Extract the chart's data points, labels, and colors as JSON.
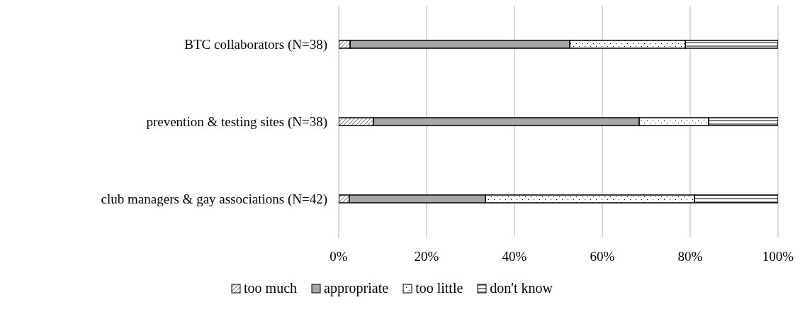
{
  "chart_data": {
    "type": "bar",
    "orientation": "horizontal",
    "stacked": true,
    "categories": [
      "BTC collaborators (N=38)",
      "prevention & testing sites (N=38)",
      "club managers & gay associations (N=42)"
    ],
    "series": [
      {
        "name": "too much",
        "color": "#000000",
        "values": [
          2.6,
          7.9,
          2.4
        ]
      },
      {
        "name": "appropriate",
        "color": "#a6a6a6",
        "values": [
          50.0,
          60.5,
          31.0
        ]
      },
      {
        "name": "too little",
        "color": "#000000",
        "values": [
          26.3,
          15.8,
          47.6
        ]
      },
      {
        "name": "don't know",
        "color": "#000000",
        "values": [
          21.1,
          15.8,
          19.0
        ]
      }
    ],
    "xlim": [
      0,
      100
    ],
    "xticks": [
      {
        "value": 0,
        "label": "0%"
      },
      {
        "value": 20,
        "label": "20%"
      },
      {
        "value": 40,
        "label": "40%"
      },
      {
        "value": 60,
        "label": "60%"
      },
      {
        "value": 80,
        "label": "80%"
      },
      {
        "value": 100,
        "label": "100%"
      }
    ],
    "grid": "x",
    "legend": "bottom"
  }
}
